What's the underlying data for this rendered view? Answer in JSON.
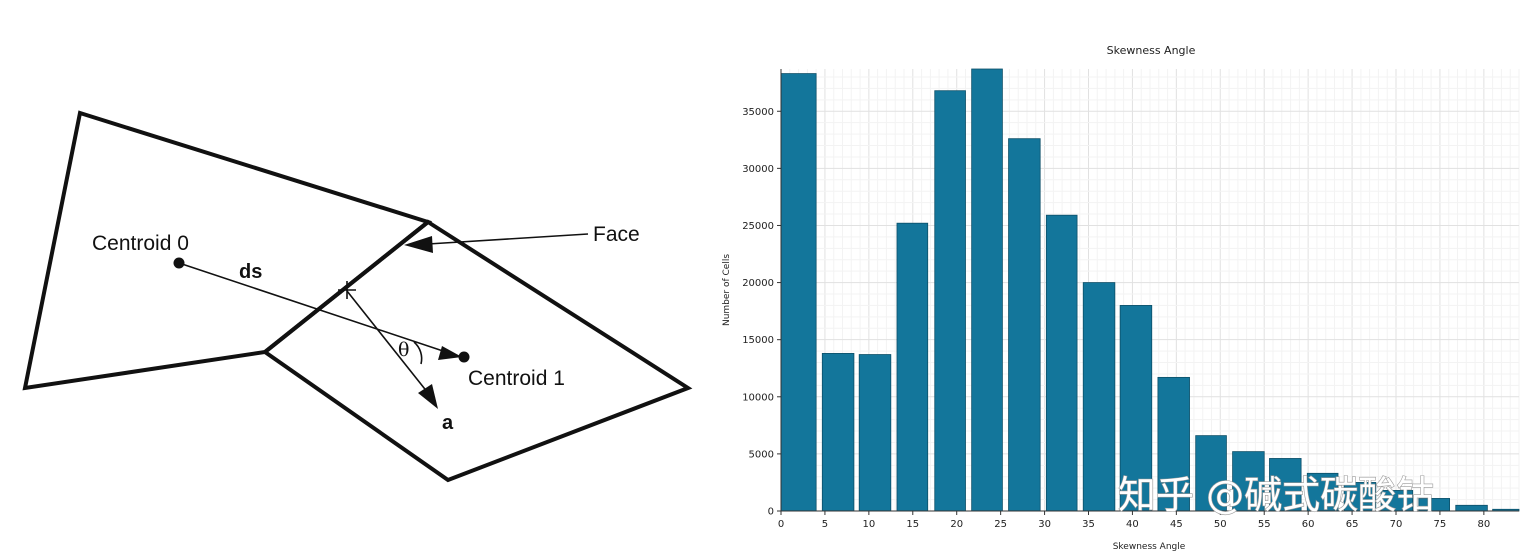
{
  "diagram": {
    "centroid0_label": "Centroid 0",
    "centroid1_label": "Centroid 1",
    "face_label": "Face",
    "ds_label": "ds",
    "a_label": "a",
    "theta_label": "θ"
  },
  "chart_data": {
    "type": "bar",
    "title": "Skewness Angle",
    "xlabel": "Skewness Angle",
    "ylabel": "Number of Cells",
    "x_ticks": [
      0,
      5,
      10,
      15,
      20,
      25,
      30,
      35,
      40,
      45,
      50,
      55,
      60,
      65,
      70,
      75,
      80
    ],
    "y_ticks": [
      0,
      5000,
      10000,
      15000,
      20000,
      25000,
      30000,
      35000
    ],
    "xlim": [
      0,
      84
    ],
    "ylim": [
      0,
      38700
    ],
    "grid": true,
    "bar_color": "#13769b",
    "bins": [
      {
        "start": 0,
        "end": 4,
        "value": 38300
      },
      {
        "start": 4.7,
        "end": 8.3,
        "value": 13800
      },
      {
        "start": 8.9,
        "end": 12.5,
        "value": 13700
      },
      {
        "start": 13.2,
        "end": 16.7,
        "value": 25200
      },
      {
        "start": 17.5,
        "end": 21,
        "value": 36800
      },
      {
        "start": 21.7,
        "end": 25.2,
        "value": 38700
      },
      {
        "start": 25.9,
        "end": 29.5,
        "value": 32600
      },
      {
        "start": 30.2,
        "end": 33.7,
        "value": 25900
      },
      {
        "start": 34.4,
        "end": 38,
        "value": 20000
      },
      {
        "start": 38.6,
        "end": 42.2,
        "value": 18000
      },
      {
        "start": 42.9,
        "end": 46.5,
        "value": 11700
      },
      {
        "start": 47.2,
        "end": 50.7,
        "value": 6600
      },
      {
        "start": 51.4,
        "end": 55,
        "value": 5200
      },
      {
        "start": 55.6,
        "end": 59.2,
        "value": 4600
      },
      {
        "start": 59.9,
        "end": 63.4,
        "value": 3300
      },
      {
        "start": 64.1,
        "end": 67.7,
        "value": 2500
      },
      {
        "start": 68.3,
        "end": 71.9,
        "value": 1800
      },
      {
        "start": 72.6,
        "end": 76.1,
        "value": 1100
      },
      {
        "start": 76.8,
        "end": 80.4,
        "value": 500
      },
      {
        "start": 81,
        "end": 84,
        "value": 150
      }
    ]
  },
  "watermark": "知乎 @碱式碳酸钴"
}
